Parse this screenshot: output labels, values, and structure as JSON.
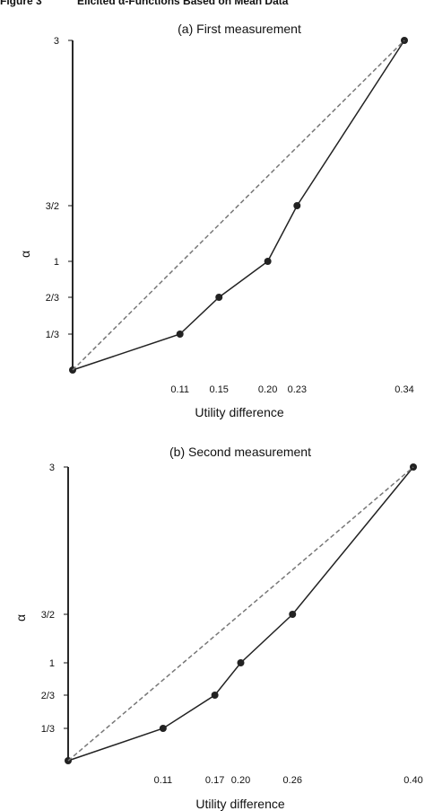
{
  "figure_header": {
    "label": "Figure 3",
    "caption": "Elicited α-Functions Based on Mean Data"
  },
  "chart_data": [
    {
      "type": "line",
      "title": "(a) First measurement",
      "xlabel": "Utility difference",
      "ylabel": "α",
      "x_tick_labels": [
        "0.11",
        "0.15",
        "0.20",
        "0.23",
        "0.34"
      ],
      "y_tick_labels": [
        "1/3",
        "2/3",
        "1",
        "3/2",
        "3"
      ],
      "series": [
        {
          "style": "solid-with-markers",
          "points": [
            {
              "x": 0,
              "y": 0
            },
            {
              "x": 0.11,
              "y": 0.3333
            },
            {
              "x": 0.15,
              "y": 0.6667
            },
            {
              "x": 0.2,
              "y": 1
            },
            {
              "x": 0.23,
              "y": 1.5
            },
            {
              "x": 0.34,
              "y": 3
            }
          ]
        },
        {
          "style": "dashed-reference",
          "points": [
            {
              "x": 0,
              "y": 0
            },
            {
              "x": 0.34,
              "y": 3
            }
          ]
        }
      ]
    },
    {
      "type": "line",
      "title": "(b) Second measurement",
      "xlabel": "Utility difference",
      "ylabel": "α",
      "x_tick_labels": [
        "0.11",
        "0.17",
        "0.20",
        "0.26",
        "0.40"
      ],
      "y_tick_labels": [
        "1/3",
        "2/3",
        "1",
        "3/2",
        "3"
      ],
      "series": [
        {
          "style": "solid-with-markers",
          "points": [
            {
              "x": 0,
              "y": 0
            },
            {
              "x": 0.11,
              "y": 0.3333
            },
            {
              "x": 0.17,
              "y": 0.6667
            },
            {
              "x": 0.2,
              "y": 1
            },
            {
              "x": 0.26,
              "y": 1.5
            },
            {
              "x": 0.4,
              "y": 3
            }
          ]
        },
        {
          "style": "dashed-reference",
          "points": [
            {
              "x": 0,
              "y": 0
            },
            {
              "x": 0.4,
              "y": 3
            }
          ]
        }
      ]
    }
  ],
  "colors": {
    "line": "#222222",
    "marker": "#222222",
    "dashed": "#777777"
  }
}
